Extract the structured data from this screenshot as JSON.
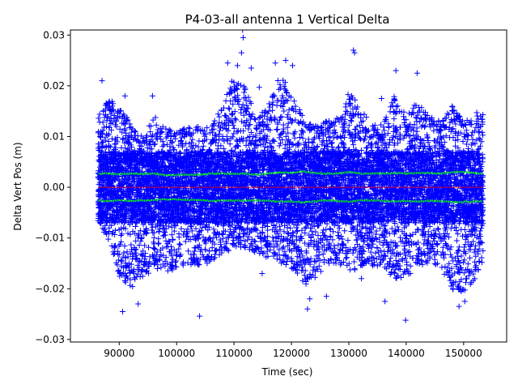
{
  "chart_data": {
    "type": "scatter",
    "title": "P4-03-all antenna 1 Vertical Delta",
    "xlabel": "Time (sec)",
    "ylabel": "Delta Vert Pos (m)",
    "xlim": [
      81500,
      157500
    ],
    "ylim": [
      -0.0305,
      0.031
    ],
    "x_ticks": [
      90000,
      100000,
      110000,
      120000,
      130000,
      140000,
      150000
    ],
    "x_tick_labels": [
      "90000",
      "100000",
      "110000",
      "120000",
      "130000",
      "140000",
      "150000"
    ],
    "y_ticks": [
      -0.03,
      -0.02,
      -0.01,
      0.0,
      0.01,
      0.02,
      0.03
    ],
    "y_tick_labels": [
      "−0.03",
      "−0.02",
      "−0.01",
      "0.00",
      "0.01",
      "0.02",
      "0.03"
    ],
    "grid": false,
    "data_x_range": [
      86400,
      153300
    ],
    "series": [
      {
        "marker": "+",
        "color": "#0000ff",
        "envelope": {
          "x": [
            86400,
            88000,
            90000,
            92000,
            94000,
            96000,
            98000,
            100000,
            102000,
            104000,
            106000,
            108000,
            110000,
            112000,
            114000,
            116000,
            118000,
            120000,
            122000,
            124000,
            126000,
            128000,
            130000,
            132000,
            134000,
            136000,
            138000,
            140000,
            142000,
            144000,
            146000,
            148000,
            150000,
            152000,
            153300
          ],
          "upper": [
            0.014,
            0.018,
            0.016,
            0.013,
            0.01,
            0.014,
            0.012,
            0.011,
            0.012,
            0.012,
            0.012,
            0.017,
            0.022,
            0.02,
            0.013,
            0.017,
            0.022,
            0.019,
            0.014,
            0.012,
            0.013,
            0.014,
            0.019,
            0.016,
            0.012,
            0.013,
            0.018,
            0.014,
            0.017,
            0.014,
            0.013,
            0.016,
            0.013,
            0.015,
            0.015
          ],
          "lower": [
            -0.007,
            -0.01,
            -0.018,
            -0.02,
            -0.018,
            -0.016,
            -0.017,
            -0.016,
            -0.015,
            -0.016,
            -0.015,
            -0.013,
            -0.012,
            -0.012,
            -0.013,
            -0.014,
            -0.015,
            -0.016,
            -0.02,
            -0.018,
            -0.016,
            -0.015,
            -0.017,
            -0.016,
            -0.016,
            -0.015,
            -0.019,
            -0.018,
            -0.016,
            -0.015,
            -0.016,
            -0.02,
            -0.021,
            -0.018,
            -0.014
          ]
        },
        "outliers": [
          {
            "x": 87000,
            "y": 0.021
          },
          {
            "x": 90600,
            "y": -0.0245
          },
          {
            "x": 91000,
            "y": 0.018
          },
          {
            "x": 93300,
            "y": -0.023
          },
          {
            "x": 95800,
            "y": 0.018
          },
          {
            "x": 104000,
            "y": -0.0254
          },
          {
            "x": 108900,
            "y": 0.0245
          },
          {
            "x": 111500,
            "y": 0.031
          },
          {
            "x": 111600,
            "y": 0.0295
          },
          {
            "x": 111300,
            "y": 0.0265
          },
          {
            "x": 110600,
            "y": 0.024
          },
          {
            "x": 113000,
            "y": 0.0235
          },
          {
            "x": 114400,
            "y": 0.0197
          },
          {
            "x": 114900,
            "y": -0.017
          },
          {
            "x": 117200,
            "y": 0.0245
          },
          {
            "x": 119000,
            "y": 0.025
          },
          {
            "x": 120200,
            "y": 0.024
          },
          {
            "x": 122800,
            "y": -0.024
          },
          {
            "x": 123200,
            "y": -0.022
          },
          {
            "x": 126100,
            "y": -0.0215
          },
          {
            "x": 130800,
            "y": 0.027
          },
          {
            "x": 131000,
            "y": 0.0265
          },
          {
            "x": 132200,
            "y": -0.018
          },
          {
            "x": 135700,
            "y": 0.0175
          },
          {
            "x": 136300,
            "y": -0.0225
          },
          {
            "x": 138200,
            "y": 0.023
          },
          {
            "x": 139900,
            "y": -0.0262
          },
          {
            "x": 141900,
            "y": 0.0225
          },
          {
            "x": 149200,
            "y": -0.0235
          },
          {
            "x": 150200,
            "y": -0.0225
          },
          {
            "x": 153200,
            "y": -0.0148
          }
        ]
      },
      {
        "color": "#00ff00",
        "marker": ".",
        "x": [
          86400,
          88000,
          90000,
          92000,
          94000,
          96000,
          98000,
          100000,
          102000,
          104000,
          106000,
          108000,
          110000,
          112000,
          114000,
          116000,
          118000,
          120000,
          122000,
          124000,
          126000,
          128000,
          130000,
          132000,
          134000,
          136000,
          138000,
          140000,
          142000,
          144000,
          146000,
          148000,
          150000,
          152000,
          153300
        ],
        "upper": [
          0.0027,
          0.0027,
          0.0026,
          0.0027,
          0.0026,
          0.0027,
          0.0024,
          0.0024,
          0.0025,
          0.0025,
          0.0027,
          0.0027,
          0.0026,
          0.0027,
          0.0025,
          0.0027,
          0.0029,
          0.0028,
          0.0031,
          0.0028,
          0.0027,
          0.0027,
          0.003,
          0.0027,
          0.0027,
          0.0027,
          0.0028,
          0.0027,
          0.0028,
          0.0028,
          0.0027,
          0.003,
          0.003,
          0.0028,
          0.0027
        ],
        "lower": [
          -0.0027,
          -0.0027,
          -0.0026,
          -0.0027,
          -0.0026,
          -0.0025,
          -0.0024,
          -0.0024,
          -0.0025,
          -0.0025,
          -0.0027,
          -0.0026,
          -0.0026,
          -0.0026,
          -0.0026,
          -0.0027,
          -0.0028,
          -0.0028,
          -0.003,
          -0.0028,
          -0.0026,
          -0.0027,
          -0.0028,
          -0.0026,
          -0.0026,
          -0.0027,
          -0.0028,
          -0.0027,
          -0.0028,
          -0.0027,
          -0.0027,
          -0.0029,
          -0.0029,
          -0.0028,
          -0.0027
        ]
      },
      {
        "color": "#ff0000",
        "marker": "line",
        "x": [
          86400,
          153300
        ],
        "values": [
          0.0,
          0.0
        ]
      }
    ]
  }
}
